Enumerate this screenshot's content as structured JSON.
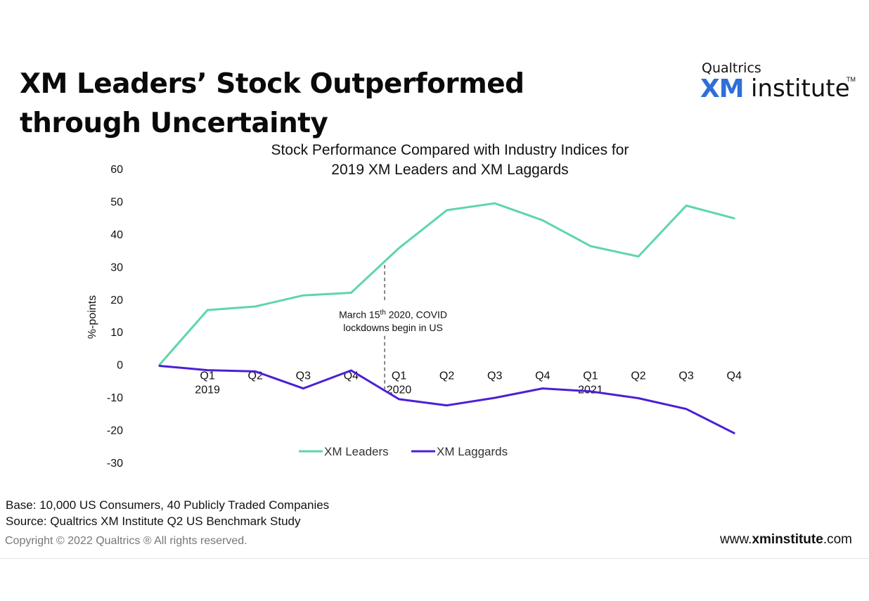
{
  "header": {
    "title_line1": "XM Leaders’ Stock Outperformed",
    "title_line2": "through Uncertainty"
  },
  "logo": {
    "brand": "Qualtrics",
    "xm": "XM",
    "institute": "institute",
    "tm": "TM"
  },
  "chart_data": {
    "type": "line",
    "title_line1": "Stock Performance Compared with Industry Indices for",
    "title_line2": "2019 XM Leaders and XM Laggards",
    "ylabel": "%-points",
    "ylim": [
      -30,
      60
    ],
    "yticks": [
      "60",
      "50",
      "40",
      "30",
      "20",
      "10",
      "0",
      "-10",
      "-20",
      "-30"
    ],
    "categories": [
      "",
      "Q1",
      "Q2",
      "Q3",
      "Q4",
      "Q1",
      "Q2",
      "Q3",
      "Q4",
      "Q1",
      "Q2",
      "Q3",
      "Q4"
    ],
    "year_labels": [
      {
        "index": 1,
        "label": "2019"
      },
      {
        "index": 5,
        "label": "2020"
      },
      {
        "index": 9,
        "label": "2021"
      }
    ],
    "series": [
      {
        "name": "XM Leaders",
        "color": "#5ed6a9",
        "values": [
          0,
          16.7,
          17.8,
          21.2,
          22.0,
          35.7,
          47.3,
          49.4,
          44.2,
          36.3,
          33.1,
          48.7,
          44.8
        ]
      },
      {
        "name": "XM Laggards",
        "color": "#4b1fd6",
        "values": [
          -0.4,
          -1.7,
          -2.1,
          -7.3,
          -1.8,
          -10.6,
          -12.5,
          -10.2,
          -7.3,
          -8.2,
          -10.3,
          -13.6,
          -21.0
        ]
      }
    ],
    "annotation": {
      "event_x": 4.7,
      "event_y": 30.5,
      "text_line1_pre": "March 15",
      "text_line1_sup": "th",
      "text_line1_post": " 2020, COVID",
      "text_line2": "lockdowns begin in US"
    },
    "legend": "bottom-center",
    "grid": false
  },
  "footer": {
    "base": "Base: 10,000 US Consumers, 40 Publicly Traded Companies",
    "source": "Source: Qualtrics XM Institute Q2 US Benchmark Study",
    "copyright": "Copyright © 2022 Qualtrics ® All rights reserved.",
    "site_prefix": "www.",
    "site_bold": "xminstitute",
    "site_suffix": ".com"
  }
}
